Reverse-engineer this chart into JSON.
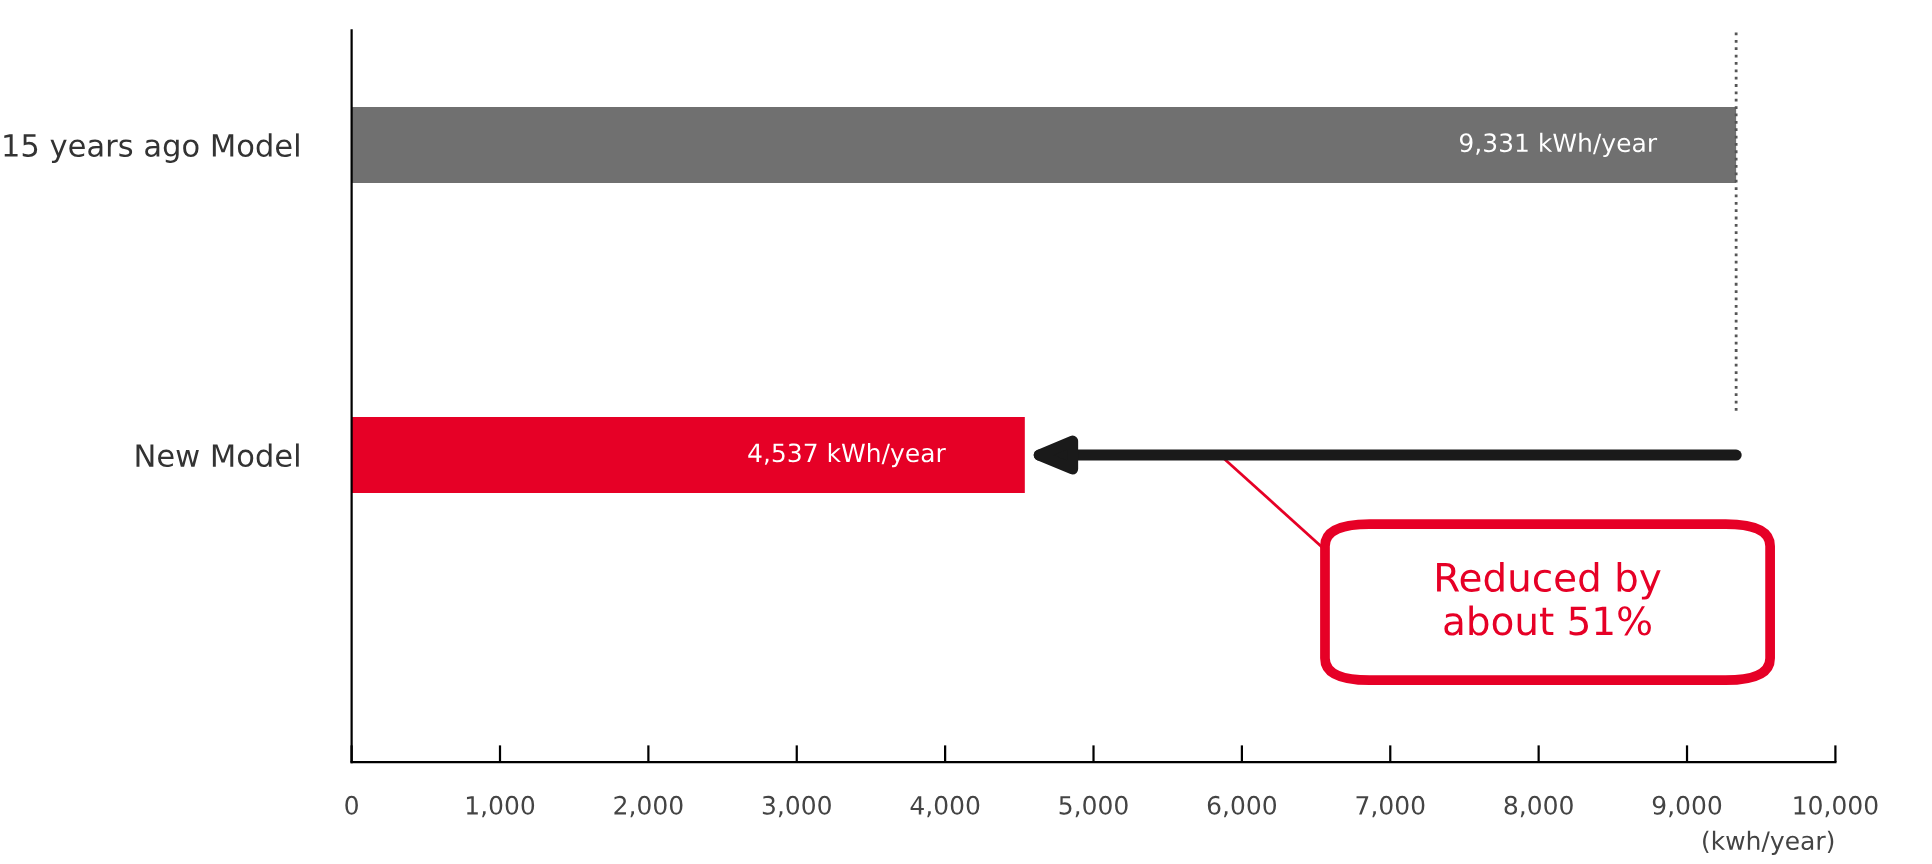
{
  "chart_data": {
    "type": "bar",
    "orientation": "horizontal",
    "xlabel": "(kwh/year)",
    "categories": [
      "15 years ago Model",
      "New Model"
    ],
    "values": [
      9331,
      4537
    ],
    "colors": [
      "#707070",
      "#e60026"
    ],
    "value_labels": [
      "9,331 kWh/year",
      "4,537 kWh/year"
    ],
    "xlim": [
      0,
      10000
    ],
    "xticks": [
      {
        "value": 0,
        "label": "0"
      },
      {
        "value": 1000,
        "label": "1,000"
      },
      {
        "value": 2000,
        "label": "2,000"
      },
      {
        "value": 3000,
        "label": "3,000"
      },
      {
        "value": 4000,
        "label": "4,000"
      },
      {
        "value": 5000,
        "label": "5,000"
      },
      {
        "value": 6000,
        "label": "6,000"
      },
      {
        "value": 7000,
        "label": "7,000"
      },
      {
        "value": 8000,
        "label": "8,000"
      },
      {
        "value": 9000,
        "label": "9,000"
      },
      {
        "value": 10000,
        "label": "10,000"
      }
    ],
    "ref_lines": [
      {
        "axis": "x",
        "value": 9331,
        "color": "#555555",
        "line_style": "dotted"
      }
    ],
    "annotations": [
      "Reduced by\nabout 51%"
    ],
    "grid": false
  }
}
